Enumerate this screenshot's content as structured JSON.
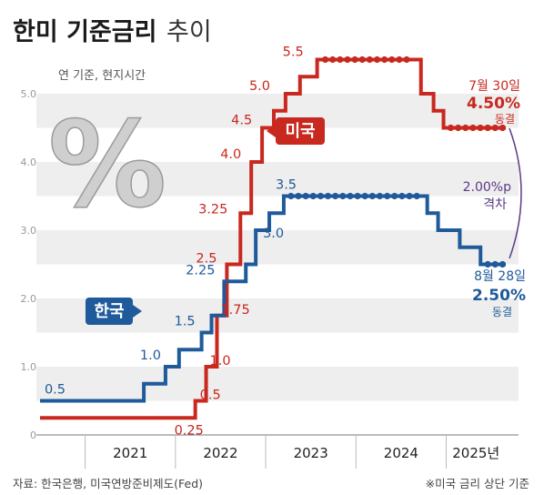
{
  "header": {
    "title_bold": "한미 기준금리",
    "title_light": "추이"
  },
  "chart_data": {
    "type": "line",
    "subtitle": "연 기준, 현지시간",
    "ylim": [
      0,
      5.5
    ],
    "y_ticks": [
      "0",
      "1.0",
      "2.0",
      "3.0",
      "4.0",
      "5.0"
    ],
    "year_labels": [
      "2021",
      "2022",
      "2023",
      "2024",
      "2025년"
    ],
    "grid": "horizontal bands",
    "colors": {
      "us": "#c8281e",
      "kr": "#1f5a9b",
      "gap": "#5b3a86",
      "band": "#eeeeee"
    },
    "series": [
      {
        "name": "미국",
        "points": [
          [
            2020.5,
            0.25
          ],
          [
            2022.22,
            0.5
          ],
          [
            2022.34,
            1.0
          ],
          [
            2022.46,
            1.75
          ],
          [
            2022.57,
            2.5
          ],
          [
            2022.72,
            3.25
          ],
          [
            2022.84,
            4.0
          ],
          [
            2022.96,
            4.5
          ],
          [
            2023.09,
            4.75
          ],
          [
            2023.22,
            5.0
          ],
          [
            2023.38,
            5.25
          ],
          [
            2023.57,
            5.5
          ],
          [
            2024.72,
            5.0
          ],
          [
            2024.86,
            4.75
          ],
          [
            2024.97,
            4.5
          ],
          [
            2025.66,
            4.5
          ]
        ],
        "labels": [
          "0.25",
          "0.5",
          "1.0",
          "1.75",
          "2.5",
          "3.25",
          "4.0",
          "4.5",
          "5.0",
          "5.5"
        ]
      },
      {
        "name": "한국",
        "points": [
          [
            2020.5,
            0.5
          ],
          [
            2021.65,
            0.75
          ],
          [
            2021.89,
            1.0
          ],
          [
            2022.04,
            1.25
          ],
          [
            2022.29,
            1.5
          ],
          [
            2022.4,
            1.75
          ],
          [
            2022.54,
            2.25
          ],
          [
            2022.78,
            2.5
          ],
          [
            2022.89,
            3.0
          ],
          [
            2023.04,
            3.25
          ],
          [
            2023.2,
            3.5
          ],
          [
            2024.79,
            3.25
          ],
          [
            2024.91,
            3.0
          ],
          [
            2025.15,
            2.75
          ],
          [
            2025.38,
            2.5
          ],
          [
            2025.66,
            2.5
          ]
        ],
        "labels": [
          "0.5",
          "1.0",
          "1.5",
          "2.25",
          "3.0",
          "3.5"
        ]
      }
    ],
    "annotations": {
      "us_date": "7월 30일",
      "us_rate": "4.50%",
      "us_status": "동결",
      "kr_date": "8월 28일",
      "kr_rate": "2.50%",
      "kr_status": "동결",
      "gap_value": "2.00%p",
      "gap_word": "격차"
    }
  },
  "footer": {
    "source": "자료: 한국은행, 미국연방준비제도(Fed)",
    "note": "※미국 금리 상단 기준"
  }
}
